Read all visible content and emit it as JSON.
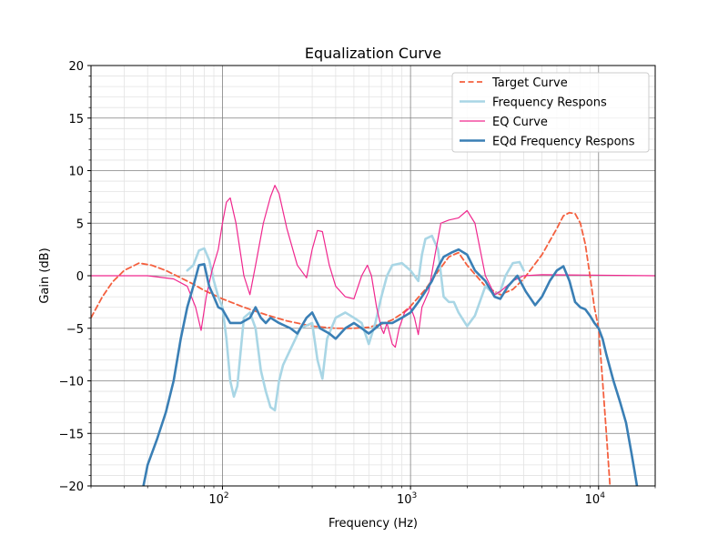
{
  "chart_data": {
    "type": "line",
    "title": "Equalization Curve",
    "xlabel": "Frequency (Hz)",
    "ylabel": "Gain (dB)",
    "xscale": "log",
    "xlim": [
      20,
      20000
    ],
    "ylim": [
      -20,
      20
    ],
    "x_ticks": [
      {
        "value": 100,
        "base": "10",
        "exp": "2"
      },
      {
        "value": 1000,
        "base": "10",
        "exp": "3"
      },
      {
        "value": 10000,
        "base": "10",
        "exp": "4"
      }
    ],
    "y_ticks": [
      {
        "value": -20,
        "label": "−20"
      },
      {
        "value": -15,
        "label": "−15"
      },
      {
        "value": -10,
        "label": "−10"
      },
      {
        "value": -5,
        "label": "−5"
      },
      {
        "value": 0,
        "label": "0"
      },
      {
        "value": 5,
        "label": "5"
      },
      {
        "value": 10,
        "label": "10"
      },
      {
        "value": 15,
        "label": "15"
      },
      {
        "value": 20,
        "label": "20"
      }
    ],
    "grid": true,
    "legend_position": "top-right",
    "series": [
      {
        "name": "Target Curve",
        "color": "#f4603f",
        "style": "dashed",
        "points": [
          [
            20,
            -4.0
          ],
          [
            23,
            -2.0
          ],
          [
            26,
            -0.6
          ],
          [
            30,
            0.5
          ],
          [
            36,
            1.2
          ],
          [
            42,
            1.0
          ],
          [
            50,
            0.5
          ],
          [
            60,
            -0.2
          ],
          [
            70,
            -0.8
          ],
          [
            80,
            -1.4
          ],
          [
            100,
            -2.2
          ],
          [
            130,
            -3.0
          ],
          [
            170,
            -3.7
          ],
          [
            220,
            -4.3
          ],
          [
            300,
            -4.8
          ],
          [
            400,
            -5.0
          ],
          [
            500,
            -5.0
          ],
          [
            600,
            -4.9
          ],
          [
            700,
            -4.6
          ],
          [
            800,
            -4.2
          ],
          [
            900,
            -3.6
          ],
          [
            1000,
            -2.9
          ],
          [
            1200,
            -1.3
          ],
          [
            1400,
            0.4
          ],
          [
            1600,
            1.8
          ],
          [
            1800,
            2.2
          ],
          [
            2000,
            1.0
          ],
          [
            2500,
            -1.0
          ],
          [
            3000,
            -1.8
          ],
          [
            3500,
            -1.3
          ],
          [
            4000,
            -0.3
          ],
          [
            5000,
            2.0
          ],
          [
            6000,
            4.5
          ],
          [
            6500,
            5.7
          ],
          [
            7000,
            6.0
          ],
          [
            7500,
            5.9
          ],
          [
            8000,
            5.0
          ],
          [
            8500,
            3.0
          ],
          [
            9000,
            0.0
          ],
          [
            9500,
            -3.0
          ],
          [
            10000,
            -5.0
          ],
          [
            10500,
            -10.0
          ],
          [
            11000,
            -15.0
          ],
          [
            11500,
            -20.0
          ]
        ]
      },
      {
        "name": "Frequency Respons",
        "color": "#a9d6e5",
        "style": "solid",
        "points": [
          [
            65,
            0.5
          ],
          [
            70,
            1.0
          ],
          [
            75,
            2.4
          ],
          [
            80,
            2.6
          ],
          [
            85,
            1.5
          ],
          [
            90,
            -0.5
          ],
          [
            95,
            -2.0
          ],
          [
            100,
            -3.0
          ],
          [
            105,
            -6.0
          ],
          [
            110,
            -10.0
          ],
          [
            115,
            -11.5
          ],
          [
            120,
            -10.5
          ],
          [
            130,
            -4.0
          ],
          [
            140,
            -3.5
          ],
          [
            150,
            -5.0
          ],
          [
            160,
            -9.0
          ],
          [
            170,
            -11.0
          ],
          [
            180,
            -12.5
          ],
          [
            190,
            -12.8
          ],
          [
            200,
            -10.0
          ],
          [
            210,
            -8.5
          ],
          [
            230,
            -7.0
          ],
          [
            260,
            -5.0
          ],
          [
            300,
            -4.5
          ],
          [
            320,
            -8.0
          ],
          [
            340,
            -9.8
          ],
          [
            360,
            -6.0
          ],
          [
            400,
            -4.0
          ],
          [
            450,
            -3.5
          ],
          [
            500,
            -4.0
          ],
          [
            550,
            -4.5
          ],
          [
            600,
            -6.5
          ],
          [
            650,
            -4.5
          ],
          [
            700,
            -2.0
          ],
          [
            750,
            0.0
          ],
          [
            800,
            1.0
          ],
          [
            900,
            1.2
          ],
          [
            1000,
            0.5
          ],
          [
            1100,
            -0.5
          ],
          [
            1150,
            2.0
          ],
          [
            1200,
            3.5
          ],
          [
            1300,
            3.8
          ],
          [
            1400,
            2.5
          ],
          [
            1500,
            -2.0
          ],
          [
            1600,
            -2.5
          ],
          [
            1700,
            -2.5
          ],
          [
            1800,
            -3.5
          ],
          [
            2000,
            -4.8
          ],
          [
            2200,
            -3.8
          ],
          [
            2500,
            -1.0
          ],
          [
            2800,
            -1.8
          ],
          [
            3000,
            -1.5
          ],
          [
            3200,
            0.0
          ],
          [
            3500,
            1.2
          ],
          [
            3800,
            1.3
          ],
          [
            4000,
            0.5
          ]
        ]
      },
      {
        "name": "EQ Curve",
        "color": "#f0278e",
        "style": "solid",
        "points": [
          [
            20,
            0.0
          ],
          [
            40,
            0.0
          ],
          [
            55,
            -0.3
          ],
          [
            65,
            -1.0
          ],
          [
            72,
            -3.0
          ],
          [
            77,
            -5.2
          ],
          [
            82,
            -2.0
          ],
          [
            88,
            0.5
          ],
          [
            95,
            2.5
          ],
          [
            100,
            5.0
          ],
          [
            105,
            7.0
          ],
          [
            110,
            7.4
          ],
          [
            118,
            5.0
          ],
          [
            130,
            0.0
          ],
          [
            140,
            -1.8
          ],
          [
            150,
            1.0
          ],
          [
            165,
            5.0
          ],
          [
            180,
            7.5
          ],
          [
            190,
            8.6
          ],
          [
            200,
            7.8
          ],
          [
            220,
            4.5
          ],
          [
            250,
            1.0
          ],
          [
            280,
            -0.2
          ],
          [
            300,
            2.5
          ],
          [
            320,
            4.3
          ],
          [
            340,
            4.2
          ],
          [
            370,
            1.0
          ],
          [
            400,
            -1.0
          ],
          [
            450,
            -2.0
          ],
          [
            500,
            -2.2
          ],
          [
            550,
            0.0
          ],
          [
            590,
            1.0
          ],
          [
            620,
            0.0
          ],
          [
            660,
            -3.0
          ],
          [
            700,
            -5.0
          ],
          [
            720,
            -5.5
          ],
          [
            750,
            -4.5
          ],
          [
            800,
            -6.5
          ],
          [
            830,
            -6.8
          ],
          [
            870,
            -5.0
          ],
          [
            930,
            -3.5
          ],
          [
            1000,
            -3.0
          ],
          [
            1050,
            -4.0
          ],
          [
            1100,
            -5.6
          ],
          [
            1150,
            -3.0
          ],
          [
            1250,
            -1.5
          ],
          [
            1350,
            2.0
          ],
          [
            1450,
            5.0
          ],
          [
            1600,
            5.3
          ],
          [
            1800,
            5.5
          ],
          [
            2000,
            6.2
          ],
          [
            2200,
            5.0
          ],
          [
            2500,
            0.0
          ],
          [
            2800,
            -1.8
          ],
          [
            3000,
            -1.5
          ],
          [
            3500,
            -0.5
          ],
          [
            4000,
            0.0
          ],
          [
            5000,
            0.1
          ],
          [
            20000,
            0.0
          ]
        ]
      },
      {
        "name": "EQd Frequency Respons",
        "color": "#3a7fb5",
        "style": "solid",
        "points": [
          [
            38,
            -20.0
          ],
          [
            40,
            -18.0
          ],
          [
            45,
            -15.5
          ],
          [
            50,
            -13.0
          ],
          [
            55,
            -10.0
          ],
          [
            60,
            -6.0
          ],
          [
            65,
            -3.0
          ],
          [
            70,
            -1.0
          ],
          [
            75,
            1.0
          ],
          [
            80,
            1.1
          ],
          [
            85,
            -1.0
          ],
          [
            90,
            -2.0
          ],
          [
            95,
            -3.0
          ],
          [
            100,
            -3.2
          ],
          [
            110,
            -4.5
          ],
          [
            125,
            -4.5
          ],
          [
            140,
            -4.0
          ],
          [
            150,
            -3.0
          ],
          [
            160,
            -4.0
          ],
          [
            170,
            -4.5
          ],
          [
            180,
            -4.0
          ],
          [
            200,
            -4.5
          ],
          [
            230,
            -5.0
          ],
          [
            250,
            -5.5
          ],
          [
            280,
            -4.0
          ],
          [
            300,
            -3.5
          ],
          [
            330,
            -5.0
          ],
          [
            370,
            -5.5
          ],
          [
            400,
            -6.0
          ],
          [
            450,
            -5.0
          ],
          [
            500,
            -4.5
          ],
          [
            550,
            -5.0
          ],
          [
            600,
            -5.5
          ],
          [
            650,
            -5.0
          ],
          [
            700,
            -4.5
          ],
          [
            800,
            -4.5
          ],
          [
            900,
            -4.0
          ],
          [
            1000,
            -3.5
          ],
          [
            1100,
            -2.5
          ],
          [
            1200,
            -1.5
          ],
          [
            1300,
            -0.5
          ],
          [
            1400,
            0.8
          ],
          [
            1500,
            1.8
          ],
          [
            1650,
            2.2
          ],
          [
            1800,
            2.5
          ],
          [
            2000,
            2.0
          ],
          [
            2200,
            0.5
          ],
          [
            2500,
            -0.5
          ],
          [
            2800,
            -2.0
          ],
          [
            3000,
            -2.2
          ],
          [
            3300,
            -1.0
          ],
          [
            3700,
            0.0
          ],
          [
            4100,
            -1.5
          ],
          [
            4600,
            -2.8
          ],
          [
            5000,
            -2.0
          ],
          [
            5500,
            -0.5
          ],
          [
            6000,
            0.5
          ],
          [
            6500,
            0.9
          ],
          [
            7000,
            -0.5
          ],
          [
            7500,
            -2.5
          ],
          [
            8000,
            -3.0
          ],
          [
            8500,
            -3.2
          ],
          [
            9000,
            -3.8
          ],
          [
            9500,
            -4.5
          ],
          [
            10000,
            -5.0
          ],
          [
            10500,
            -6.0
          ],
          [
            11000,
            -7.5
          ],
          [
            12000,
            -10.0
          ],
          [
            13000,
            -12.0
          ],
          [
            14000,
            -14.0
          ],
          [
            15000,
            -17.0
          ],
          [
            15500,
            -18.5
          ],
          [
            16000,
            -20.0
          ]
        ]
      }
    ]
  }
}
